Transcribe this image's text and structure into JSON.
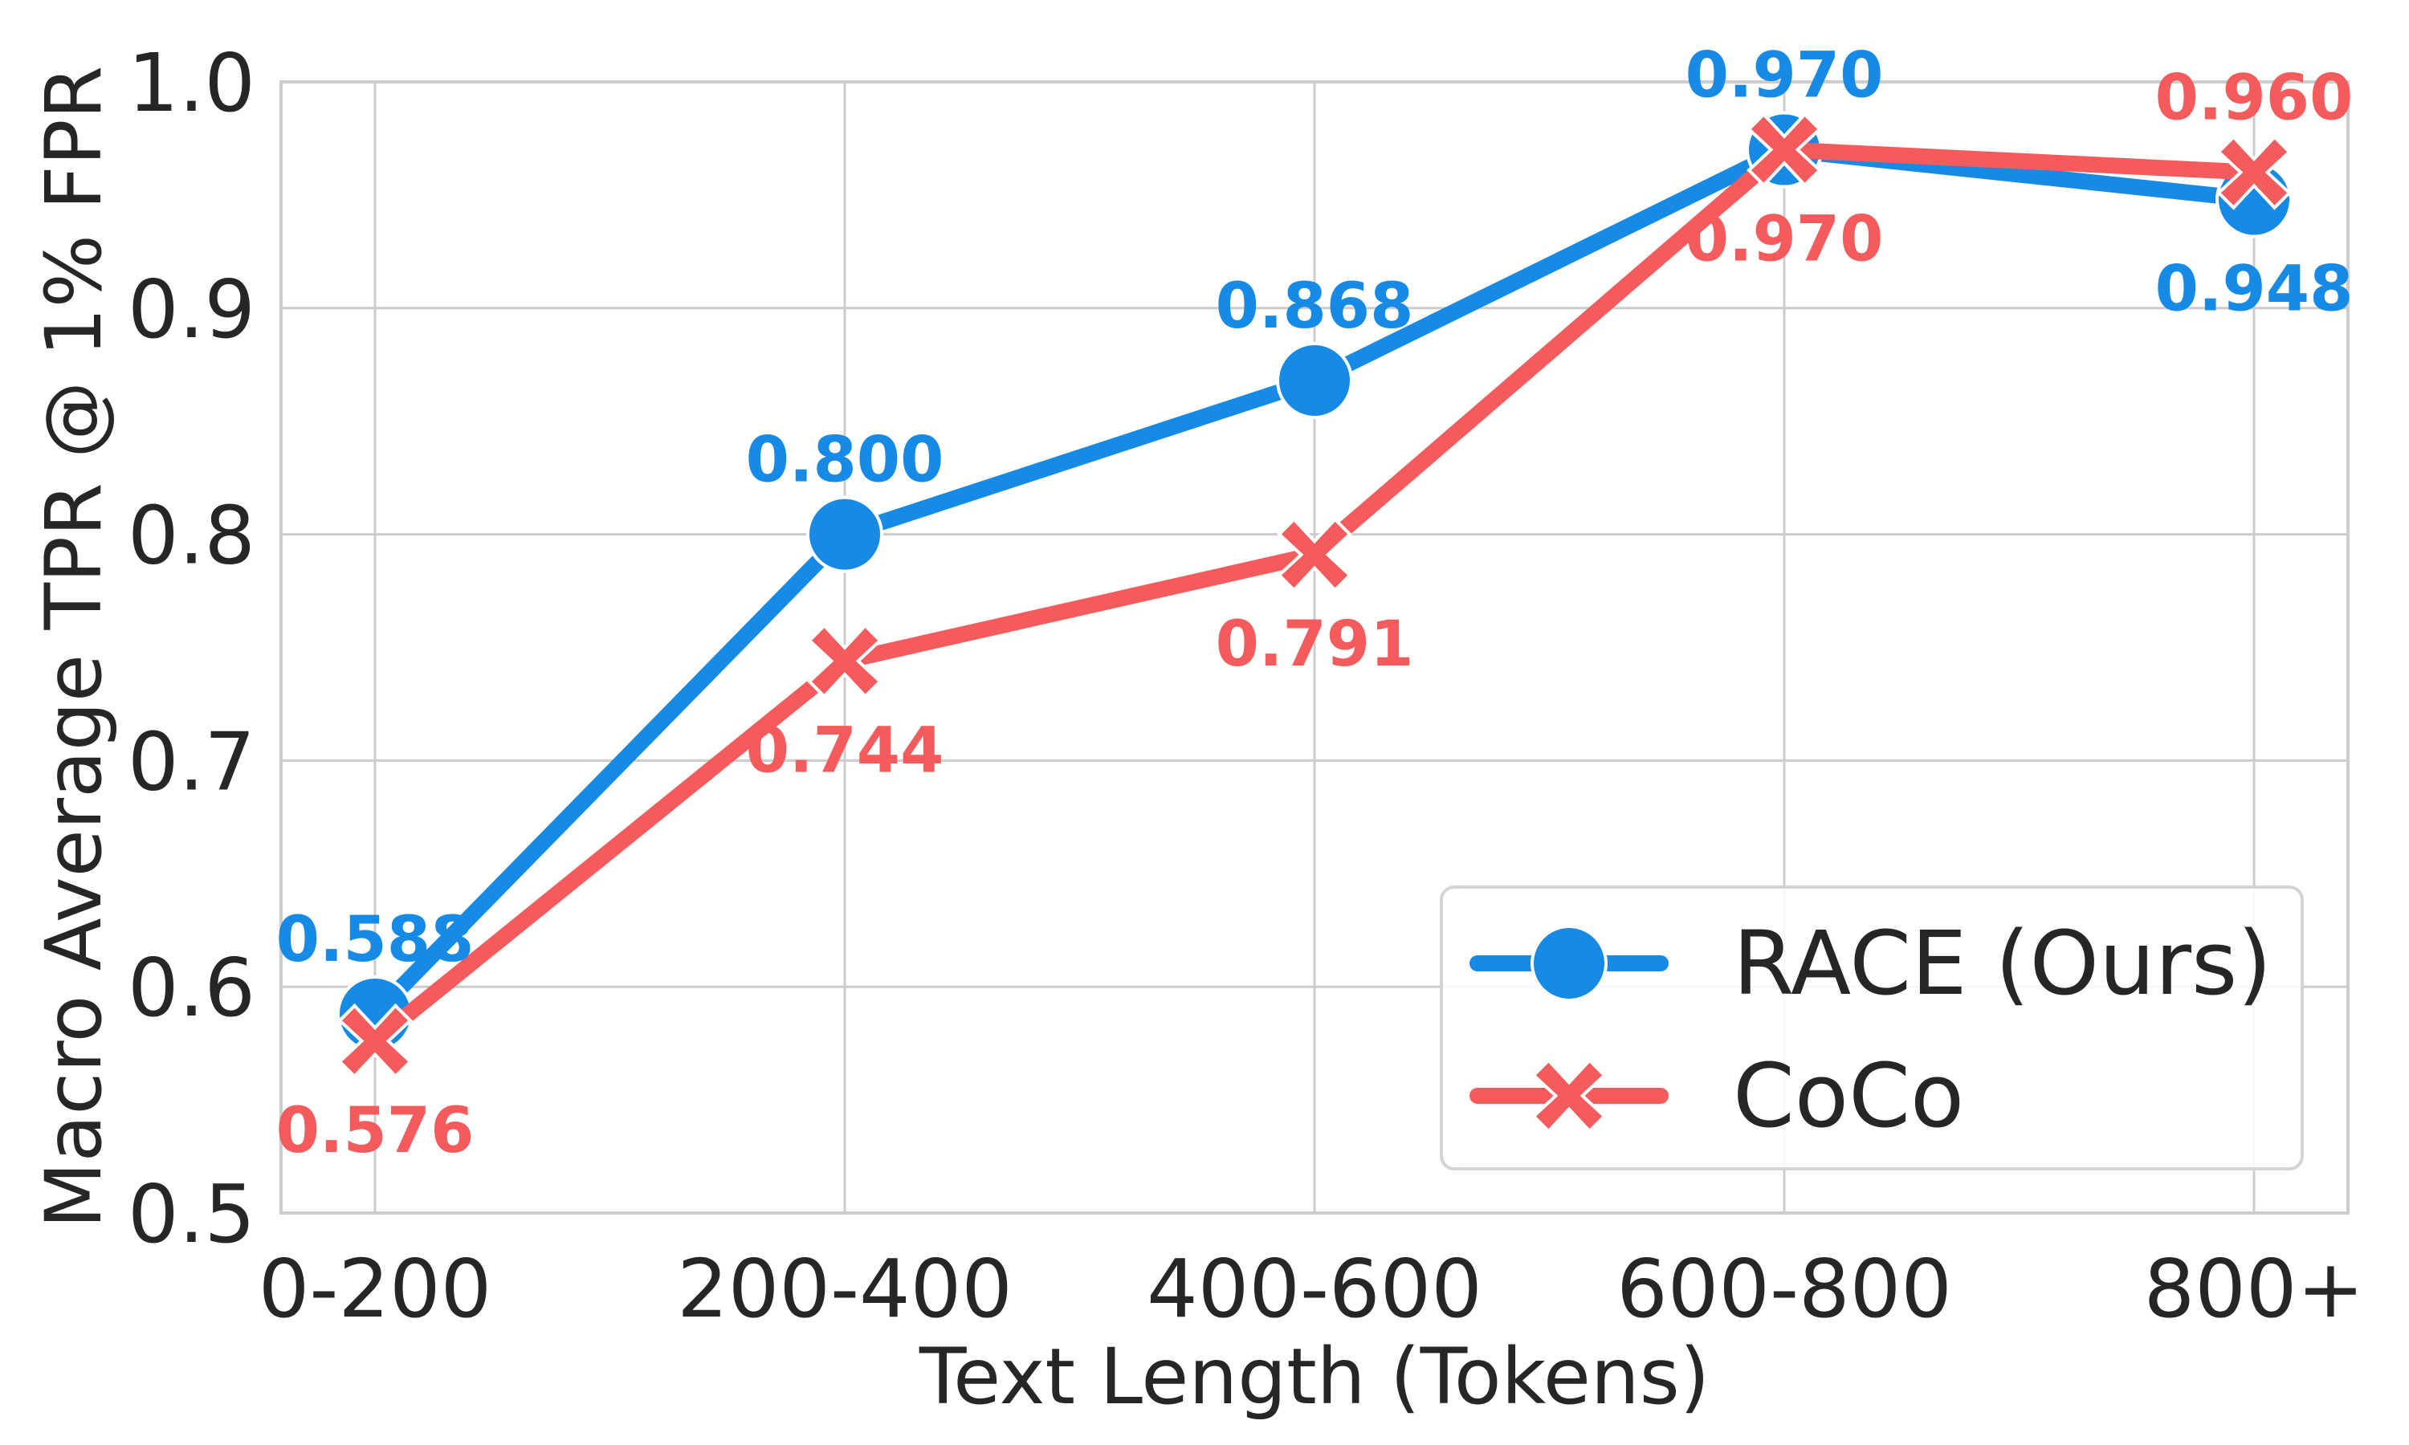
{
  "chart_data": {
    "type": "line",
    "title": "",
    "xlabel": "Text Length (Tokens)",
    "ylabel": "Macro Average TPR @ 1% FPR",
    "categories": [
      "0-200",
      "200-400",
      "400-600",
      "600-800",
      "800+"
    ],
    "ylim": [
      0.5,
      1.0
    ],
    "yticks": [
      "0.5",
      "0.6",
      "0.7",
      "0.8",
      "0.9",
      "1.0"
    ],
    "grid": true,
    "legend_position": "lower right",
    "series": [
      {
        "name": "RACE (Ours)",
        "color": "#168ae4",
        "marker": "circle",
        "values": [
          0.588,
          0.8,
          0.868,
          0.97,
          0.948
        ],
        "labels": [
          "0.588",
          "0.800",
          "0.868",
          "0.970",
          "0.948"
        ],
        "label_positions": [
          "above",
          "above",
          "above",
          "above",
          "below"
        ]
      },
      {
        "name": "CoCo",
        "color": "#f45b5d",
        "marker": "x",
        "values": [
          0.576,
          0.744,
          0.791,
          0.97,
          0.96
        ],
        "labels": [
          "0.576",
          "0.744",
          "0.791",
          "0.970",
          "0.960"
        ],
        "label_positions": [
          "below",
          "below",
          "below",
          "below",
          "above"
        ]
      }
    ]
  },
  "legend": {
    "items": [
      "RACE (Ours)",
      "CoCo"
    ]
  }
}
